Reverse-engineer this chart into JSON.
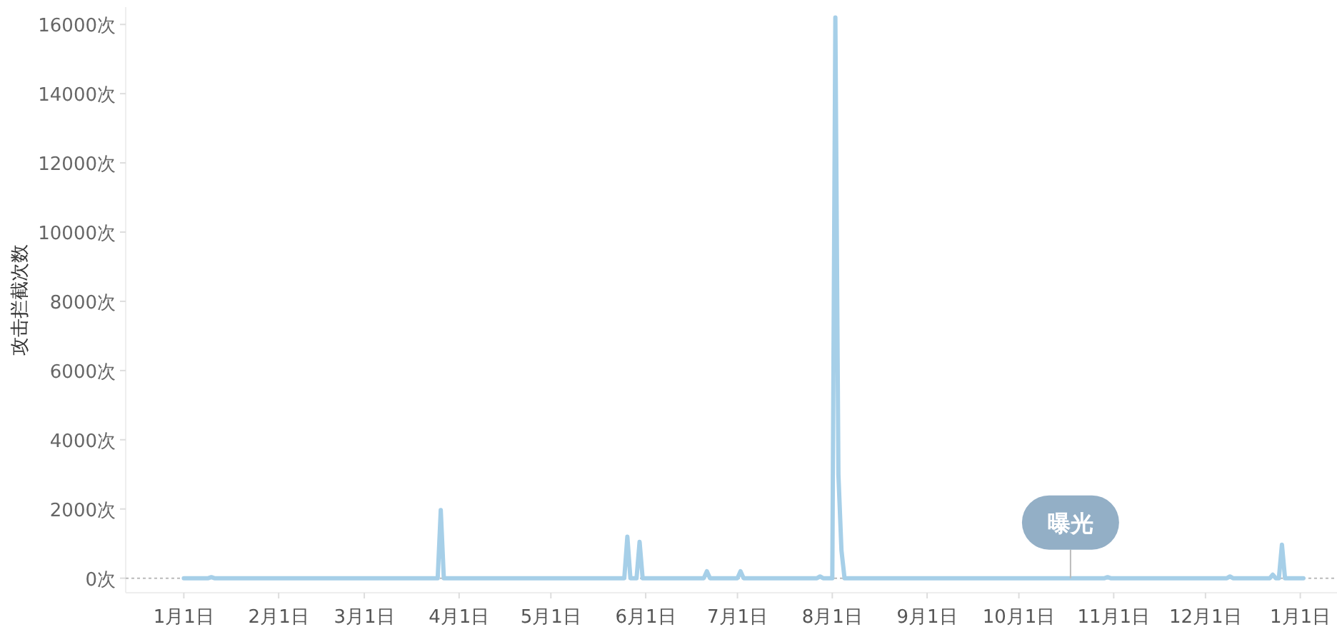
{
  "chart_data": {
    "type": "line",
    "ylabel": "攻击拦截次数",
    "ylim": [
      -420,
      16500
    ],
    "categories": [
      "1月1日",
      null,
      null,
      null,
      null,
      null,
      null,
      null,
      null,
      null,
      null,
      null,
      null,
      null,
      null,
      null,
      null,
      null,
      null,
      null,
      null,
      null,
      null,
      null,
      null,
      null,
      null,
      null,
      null,
      null,
      null,
      "2月1日",
      null,
      null,
      null,
      null,
      null,
      null,
      null,
      null,
      null,
      null,
      null,
      null,
      null,
      null,
      null,
      null,
      null,
      null,
      null,
      null,
      null,
      null,
      null,
      null,
      null,
      null,
      null,
      "3月1日",
      null,
      null,
      null,
      null,
      null,
      null,
      null,
      null,
      null,
      null,
      null,
      null,
      null,
      null,
      null,
      null,
      null,
      null,
      null,
      null,
      null,
      null,
      null,
      null,
      null,
      null,
      null,
      null,
      null,
      null,
      "4月1日",
      null,
      null,
      null,
      null,
      null,
      null,
      null,
      null,
      null,
      null,
      null,
      null,
      null,
      null,
      null,
      null,
      null,
      null,
      null,
      null,
      null,
      null,
      null,
      null,
      null,
      null,
      null,
      null,
      null,
      "5月1日",
      null,
      null,
      null,
      null,
      null,
      null,
      null,
      null,
      null,
      null,
      null,
      null,
      null,
      null,
      null,
      null,
      null,
      null,
      null,
      null,
      null,
      null,
      null,
      null,
      null,
      null,
      null,
      null,
      null,
      null,
      "6月1日",
      null,
      null,
      null,
      null,
      null,
      null,
      null,
      null,
      null,
      null,
      null,
      null,
      null,
      null,
      null,
      null,
      null,
      null,
      null,
      null,
      null,
      null,
      null,
      null,
      null,
      null,
      null,
      null,
      null,
      "7月1日",
      null,
      null,
      null,
      null,
      null,
      null,
      null,
      null,
      null,
      null,
      null,
      null,
      null,
      null,
      null,
      null,
      null,
      null,
      null,
      null,
      null,
      null,
      null,
      null,
      null,
      null,
      null,
      null,
      null,
      null,
      "8月1日",
      null,
      null,
      null,
      null,
      null,
      null,
      null,
      null,
      null,
      null,
      null,
      null,
      null,
      null,
      null,
      null,
      null,
      null,
      null,
      null,
      null,
      null,
      null,
      null,
      null,
      null,
      null,
      null,
      null,
      null,
      "9月1日",
      null,
      null,
      null,
      null,
      null,
      null,
      null,
      null,
      null,
      null,
      null,
      null,
      null,
      null,
      null,
      null,
      null,
      null,
      null,
      null,
      null,
      null,
      null,
      null,
      null,
      null,
      null,
      null,
      null,
      "10月1日",
      null,
      null,
      null,
      null,
      null,
      null,
      null,
      null,
      null,
      null,
      null,
      null,
      null,
      null,
      null,
      null,
      null,
      null,
      null,
      null,
      null,
      null,
      null,
      null,
      null,
      null,
      null,
      null,
      null,
      null,
      "11月1日",
      null,
      null,
      null,
      null,
      null,
      null,
      null,
      null,
      null,
      null,
      null,
      null,
      null,
      null,
      null,
      null,
      null,
      null,
      null,
      null,
      null,
      null,
      null,
      null,
      null,
      null,
      null,
      null,
      null,
      "12月1日",
      null,
      null,
      null,
      null,
      null,
      null,
      null,
      null,
      null,
      null,
      null,
      null,
      null,
      null,
      null,
      null,
      null,
      null,
      null,
      null,
      null,
      null,
      null,
      null,
      null,
      null,
      null,
      null,
      null,
      null,
      "1月1日",
      null
    ],
    "yticks": [
      {
        "value": 0,
        "label": "0次"
      },
      {
        "value": 2000,
        "label": "2000次"
      },
      {
        "value": 4000,
        "label": "4000次"
      },
      {
        "value": 6000,
        "label": "6000次"
      },
      {
        "value": 8000,
        "label": "8000次"
      },
      {
        "value": 10000,
        "label": "10000次"
      },
      {
        "value": 12000,
        "label": "12000次"
      },
      {
        "value": 14000,
        "label": "14000次"
      },
      {
        "value": 16000,
        "label": "16000次"
      }
    ],
    "series": [
      {
        "color": "#a6cfe8",
        "values": [
          0,
          0,
          0,
          0,
          0,
          0,
          0,
          0,
          0,
          30,
          0,
          0,
          0,
          0,
          0,
          0,
          0,
          0,
          0,
          0,
          0,
          0,
          0,
          0,
          0,
          0,
          0,
          0,
          0,
          0,
          0,
          0,
          0,
          0,
          0,
          0,
          0,
          0,
          0,
          0,
          0,
          0,
          0,
          0,
          0,
          0,
          0,
          0,
          0,
          0,
          0,
          0,
          0,
          0,
          0,
          0,
          0,
          0,
          0,
          0,
          0,
          0,
          0,
          0,
          0,
          0,
          0,
          0,
          0,
          0,
          0,
          0,
          0,
          0,
          0,
          0,
          0,
          0,
          0,
          0,
          0,
          0,
          0,
          0,
          1970,
          0,
          0,
          0,
          0,
          0,
          0,
          0,
          0,
          0,
          0,
          0,
          0,
          0,
          0,
          0,
          0,
          0,
          0,
          0,
          0,
          0,
          0,
          0,
          0,
          0,
          0,
          0,
          0,
          0,
          0,
          0,
          0,
          0,
          0,
          0,
          0,
          0,
          0,
          0,
          0,
          0,
          0,
          0,
          0,
          0,
          0,
          0,
          0,
          0,
          0,
          0,
          0,
          0,
          0,
          0,
          0,
          0,
          0,
          0,
          0,
          1200,
          0,
          0,
          0,
          1050,
          0,
          0,
          0,
          0,
          0,
          0,
          0,
          0,
          0,
          0,
          0,
          0,
          0,
          0,
          0,
          0,
          0,
          0,
          0,
          0,
          0,
          200,
          0,
          0,
          0,
          0,
          0,
          0,
          0,
          0,
          0,
          0,
          200,
          0,
          0,
          0,
          0,
          0,
          0,
          0,
          0,
          0,
          0,
          0,
          0,
          0,
          0,
          0,
          0,
          0,
          0,
          0,
          0,
          0,
          0,
          0,
          0,
          0,
          50,
          0,
          0,
          0,
          0,
          16200,
          3000,
          800,
          0,
          0,
          0,
          0,
          0,
          0,
          0,
          0,
          0,
          0,
          0,
          0,
          0,
          0,
          0,
          0,
          0,
          0,
          0,
          0,
          0,
          0,
          0,
          0,
          0,
          0,
          0,
          0,
          0,
          0,
          0,
          0,
          0,
          0,
          0,
          0,
          0,
          0,
          0,
          0,
          0,
          0,
          0,
          0,
          0,
          0,
          0,
          0,
          0,
          0,
          0,
          0,
          0,
          0,
          0,
          0,
          0,
          0,
          0,
          0,
          0,
          0,
          0,
          0,
          0,
          0,
          0,
          0,
          0,
          0,
          0,
          0,
          0,
          0,
          0,
          0,
          0,
          0,
          0,
          0,
          0,
          0,
          0,
          0,
          0,
          0,
          30,
          0,
          0,
          0,
          0,
          0,
          0,
          0,
          0,
          0,
          0,
          0,
          0,
          0,
          0,
          0,
          0,
          0,
          0,
          0,
          0,
          0,
          0,
          0,
          0,
          0,
          0,
          0,
          0,
          0,
          0,
          0,
          0,
          0,
          0,
          0,
          0,
          0,
          0,
          0,
          50,
          0,
          0,
          0,
          0,
          0,
          0,
          0,
          0,
          0,
          0,
          0,
          0,
          0,
          100,
          0,
          0,
          970,
          0,
          0,
          0,
          0,
          0,
          0,
          0
        ]
      }
    ],
    "ref_lines": [
      {
        "axis": "y",
        "value": 0,
        "line_style": "dotted",
        "color": "#bbbbbb"
      }
    ],
    "annotations": [
      {
        "text": "曝光",
        "y": 0
      }
    ]
  }
}
